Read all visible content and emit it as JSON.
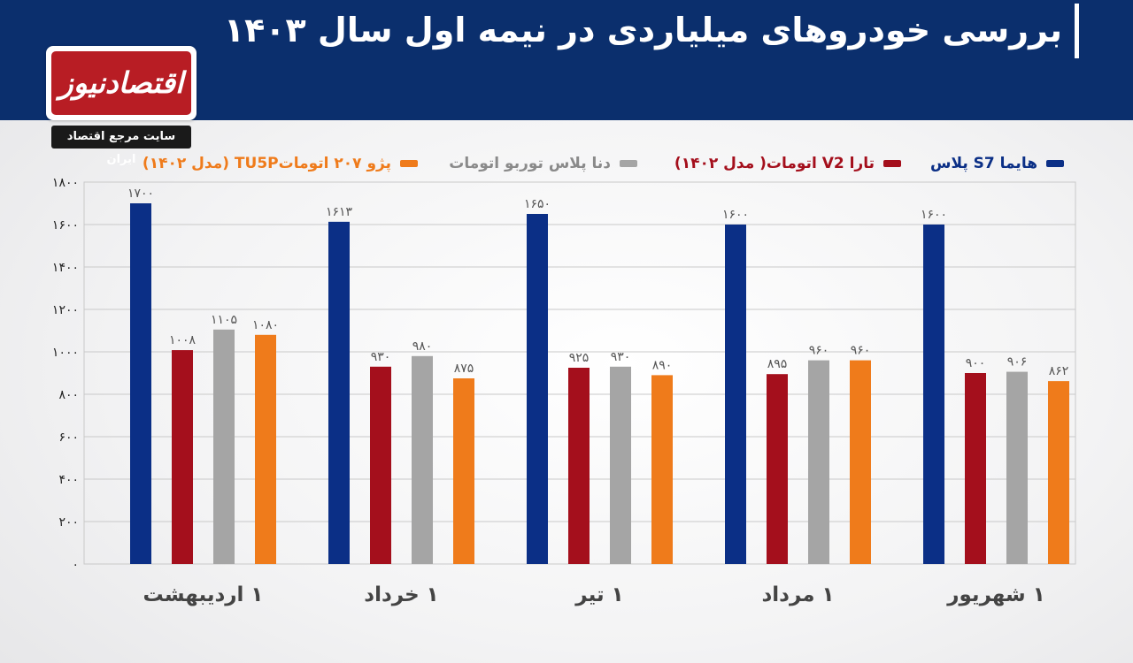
{
  "header": {
    "title": "بررسی خودروهای میلیاردی در نیمه اول سال ۱۴۰۳"
  },
  "logo": {
    "caption": "سایت مرجع اقتصاد ایران",
    "text": "اقتصادنیوز"
  },
  "colors": {
    "header_bg": "#0b2f6d",
    "grid": "#c9c9c9",
    "category_label": "#444444",
    "value_label": "#555555"
  },
  "chart_data": {
    "type": "bar",
    "categories": [
      "۱ اردیبهشت",
      "۱ خرداد",
      "۱ تیر",
      "۱ مرداد",
      "۱ شهریور"
    ],
    "series": [
      {
        "name": "هایما S7 پلاس",
        "color": "#0b2f86",
        "values": [
          1700,
          1613,
          1650,
          1600,
          1600
        ],
        "labels": [
          "۱۷۰۰",
          "۱۶۱۳",
          "۱۶۵۰",
          "۱۶۰۰",
          "۱۶۰۰"
        ]
      },
      {
        "name": "تارا V2 اتومات( مدل ۱۴۰۲)",
        "color": "#a40f1c",
        "values": [
          1008,
          930,
          925,
          895,
          900
        ],
        "labels": [
          "۱۰۰۸",
          "۹۳۰",
          "۹۲۵",
          "۸۹۵",
          "۹۰۰"
        ]
      },
      {
        "name": "دنا پلاس توربو اتومات",
        "color": "#a5a5a5",
        "values": [
          1105,
          980,
          930,
          960,
          906
        ],
        "labels": [
          "۱۱۰۵",
          "۹۸۰",
          "۹۳۰",
          "۹۶۰",
          "۹۰۶"
        ]
      },
      {
        "name": "پژو ۲۰۷ اتوماتTU5P (مدل ۱۴۰۲)",
        "color": "#ef7b1b",
        "values": [
          1080,
          875,
          890,
          960,
          862
        ],
        "labels": [
          "۱۰۸۰",
          "۸۷۵",
          "۸۹۰",
          "۹۶۰",
          "۸۶۲"
        ]
      }
    ],
    "ylim": [
      0,
      1800
    ],
    "yticks": [
      0,
      200,
      400,
      600,
      800,
      1000,
      1200,
      1400,
      1600,
      1800
    ],
    "ytick_labels": [
      "۰",
      "۲۰۰",
      "۴۰۰",
      "۶۰۰",
      "۸۰۰",
      "۱۰۰۰",
      "۱۲۰۰",
      "۱۴۰۰",
      "۱۶۰۰",
      "۱۸۰۰"
    ],
    "grid": true,
    "legend_position": "top",
    "title": "",
    "xlabel": "",
    "ylabel": ""
  }
}
